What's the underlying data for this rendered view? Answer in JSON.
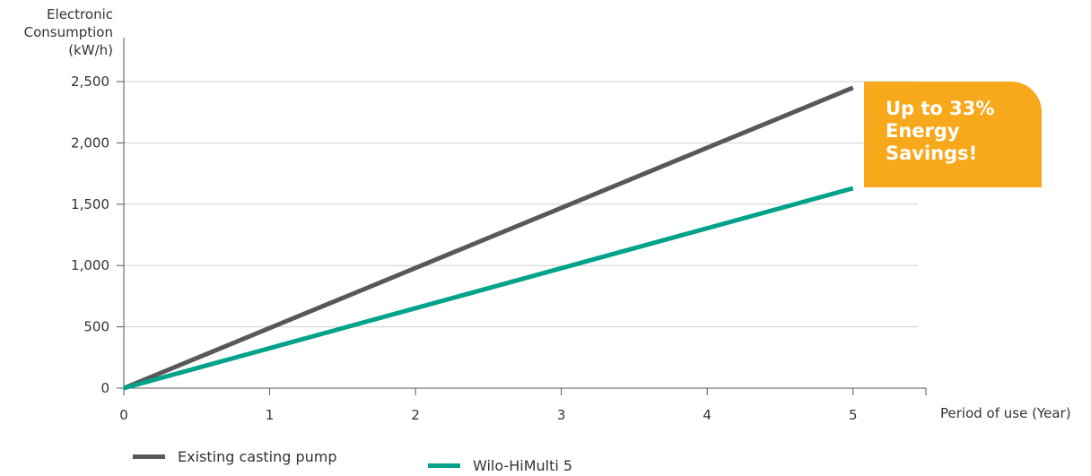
{
  "chart_data": {
    "type": "line",
    "title": "",
    "ylabel": [
      "Electronic",
      "Consumption",
      "(kW/h)"
    ],
    "xlabel": "Period of use (Year)",
    "x": [
      0,
      1,
      2,
      3,
      4,
      5
    ],
    "xlim": [
      0,
      5.5
    ],
    "ylim": [
      0,
      2500
    ],
    "x_ticks": [
      "0",
      "1",
      "2",
      "3",
      "4",
      "5"
    ],
    "y_ticks": [
      0,
      500,
      1000,
      1500,
      2000,
      2500
    ],
    "y_tick_labels": [
      "0",
      "500",
      "1,000",
      "1,500",
      "2,000",
      "2,500"
    ],
    "grid": "horizontal",
    "legend_position": "bottom-left",
    "series": [
      {
        "name": "Existing casting pump",
        "color": "#58585a",
        "values": [
          0,
          490,
          980,
          1470,
          1960,
          2450
        ]
      },
      {
        "name": "Wilo-HiMulti 5",
        "color": "#00a38a",
        "values": [
          0,
          326,
          652,
          978,
          1304,
          1630
        ]
      }
    ],
    "annotation": {
      "lines": [
        "Up to 33%",
        "Energy",
        "Savings!"
      ],
      "color": "#f7a81b"
    }
  }
}
